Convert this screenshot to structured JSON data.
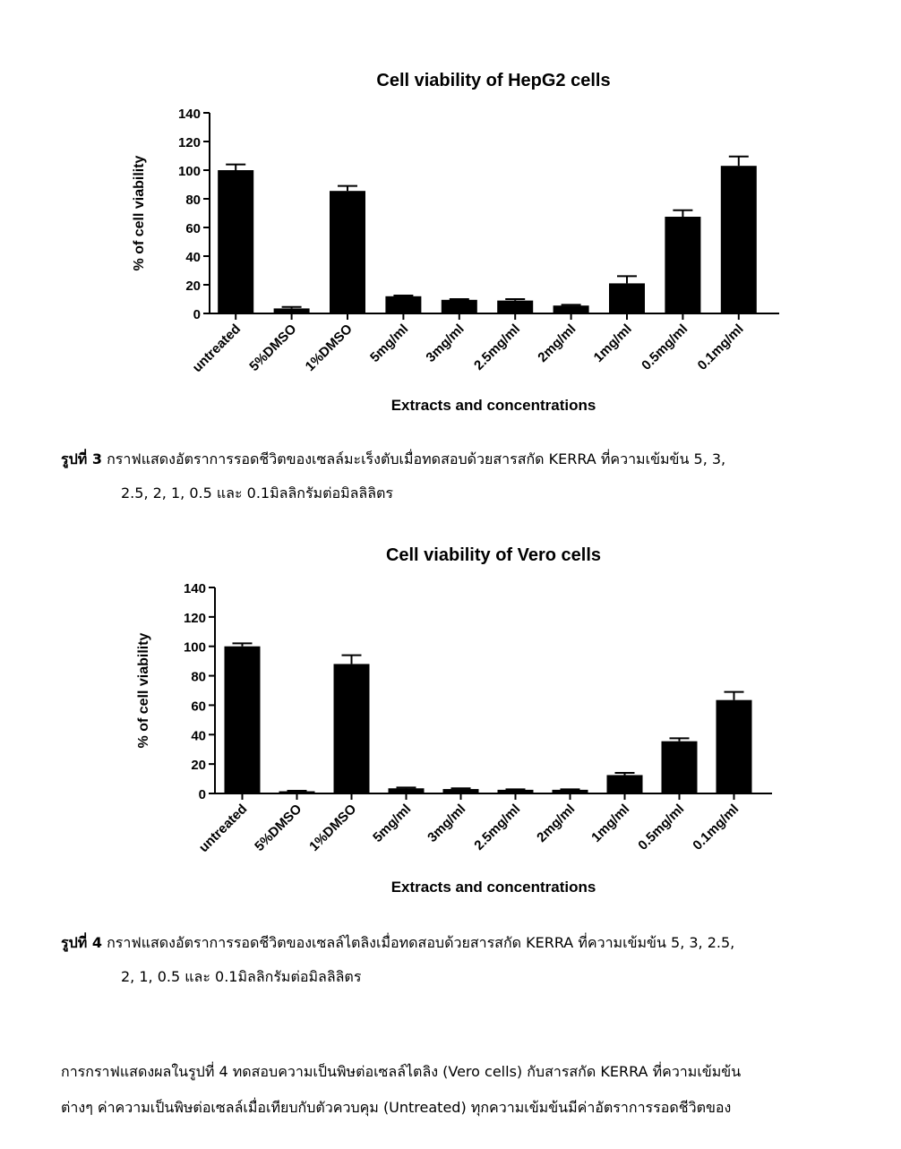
{
  "figures": [
    {
      "chart_data": {
        "type": "bar",
        "title": "Cell viability of HepG2 cells",
        "xlabel": "Extracts and concentrations",
        "ylabel": "% of cell viability",
        "ylim": [
          0,
          140
        ],
        "yticks": [
          "0",
          "20",
          "40",
          "60",
          "80",
          "100",
          "120",
          "140"
        ],
        "categories": [
          "untreated",
          "5%DMSO",
          "1%DMSO",
          "5mg/ml",
          "3mg/ml",
          "2.5mg/ml",
          "2mg/ml",
          "1mg/ml",
          "0.5mg/ml",
          "0.1mg/ml"
        ],
        "values": [
          100,
          3.5,
          85.5,
          12,
          9.5,
          9,
          5.5,
          21,
          67.5,
          103
        ],
        "errors": [
          4,
          1,
          3.5,
          0.5,
          0.5,
          1,
          0.5,
          5,
          4.5,
          6.5
        ]
      },
      "caption": {
        "label": "รูปที่ 3",
        "line1": "กราฟแสดงอัตราการรอดชีวิตของเซลล์มะเร็งตับเมื่อทดสอบด้วยสารสกัด KERRA ที่ความเข้มข้น 5, 3,",
        "line2": "2.5, 2, 1, 0.5 และ 0.1มิลลิกรัมต่อมิลลิลิตร"
      }
    },
    {
      "chart_data": {
        "type": "bar",
        "title": "Cell viability of Vero cells",
        "xlabel": "Extracts and concentrations",
        "ylabel": "% of cell viability",
        "ylim": [
          0,
          140
        ],
        "yticks": [
          "0",
          "20",
          "40",
          "60",
          "80",
          "100",
          "120",
          "140"
        ],
        "categories": [
          "untreated",
          "5%DMSO",
          "1%DMSO",
          "5mg/ml",
          "3mg/ml",
          "2.5mg/ml",
          "2mg/ml",
          "1mg/ml",
          "0.5mg/ml",
          "0.1mg/ml"
        ],
        "values": [
          100,
          1.5,
          88,
          3.5,
          3,
          2.5,
          2.5,
          12.5,
          35.5,
          63.5
        ],
        "errors": [
          2,
          0.3,
          6,
          0.5,
          0.5,
          0.3,
          0.3,
          1.5,
          2,
          5.5
        ]
      },
      "caption": {
        "label": "รูปที่ 4",
        "line1": "กราฟแสดงอัตราการรอดชีวิตของเซลล์ไตลิงเมื่อทดสอบด้วยสารสกัด KERRA ที่ความเข้มข้น 5, 3,    2.5,",
        "line2": "2, 1, 0.5 และ 0.1มิลลิกรัมต่อมิลลิลิตร"
      }
    }
  ],
  "paragraph": {
    "line1": "การกราฟแสดงผลในรูปที่ 4 ทดสอบความเป็นพิษต่อเซลล์ไตลิง (Vero cells) กับสารสกัด KERRA ที่ความเข้มข้น",
    "line2": "ต่างๆ ค่าความเป็นพิษต่อเซลล์เมื่อเทียบกับตัวควบคุม (Untreated) ทุกความเข้มข้นมีค่าอัตราการรอดชีวิตของ"
  }
}
